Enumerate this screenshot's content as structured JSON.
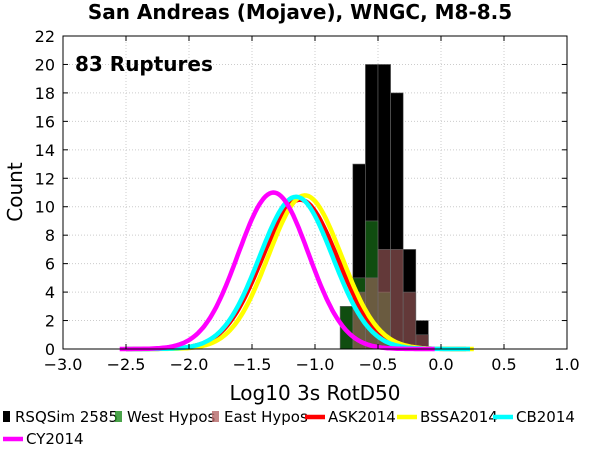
{
  "chart_data": {
    "type": "bar",
    "title": "San Andreas (Mojave), WNGC, M8-8.5",
    "xlabel": "Log10 3s RotD50",
    "ylabel": "Count",
    "annotation": "83 Ruptures",
    "xlim": [
      -3.0,
      1.0
    ],
    "ylim": [
      0,
      22
    ],
    "xticks": [
      -3.0,
      -2.5,
      -2.0,
      -1.5,
      -1.0,
      -0.5,
      0.0,
      0.5,
      1.0
    ],
    "xtick_labels": [
      "−3.0",
      "−2.5",
      "−2.0",
      "−1.5",
      "−1.0",
      "−0.5",
      "0.0",
      "0.5",
      "1.0"
    ],
    "yticks": [
      0,
      2,
      4,
      6,
      8,
      10,
      12,
      14,
      16,
      18,
      20,
      22
    ],
    "ytick_labels": [
      "0",
      "2",
      "4",
      "6",
      "8",
      "10",
      "12",
      "14",
      "16",
      "18",
      "20",
      "22"
    ],
    "grid": true,
    "bin_width": 0.1,
    "bins": [
      -0.8,
      -0.7,
      -0.6,
      -0.5,
      -0.4,
      -0.3,
      -0.2,
      -0.1
    ],
    "series": [
      {
        "name": "RSQSim 2585",
        "kind": "bar",
        "color": "#000000",
        "values": [
          3,
          13,
          20,
          20,
          18,
          7,
          2,
          0
        ]
      },
      {
        "name": "West Hypos",
        "kind": "bar",
        "color": "#1d8c1d",
        "values": [
          3,
          5,
          9,
          4,
          0,
          0,
          0,
          0
        ]
      },
      {
        "name": "East Hypos",
        "kind": "bar",
        "color": "#b56868",
        "values": [
          0,
          4,
          5,
          7,
          7,
          4,
          1,
          0
        ]
      },
      {
        "name": "ASK2014",
        "kind": "line",
        "color": "#ff0000",
        "mu": -1.12,
        "sigma": 0.3,
        "peak": 10.5,
        "range": [
          -2.5,
          0.2
        ]
      },
      {
        "name": "BSSA2014",
        "kind": "line",
        "color": "#ffff00",
        "mu": -1.08,
        "sigma": 0.29,
        "peak": 10.8,
        "range": [
          -2.5,
          0.26
        ]
      },
      {
        "name": "CB2014",
        "kind": "line",
        "color": "#00ffff",
        "mu": -1.15,
        "sigma": 0.29,
        "peak": 10.7,
        "range": [
          -2.5,
          0.23
        ]
      },
      {
        "name": "CY2014",
        "kind": "line",
        "color": "#ff00ff",
        "mu": -1.33,
        "sigma": 0.28,
        "peak": 11.0,
        "range": [
          -2.55,
          -0.05
        ]
      }
    ],
    "legend_position": "bottom"
  }
}
